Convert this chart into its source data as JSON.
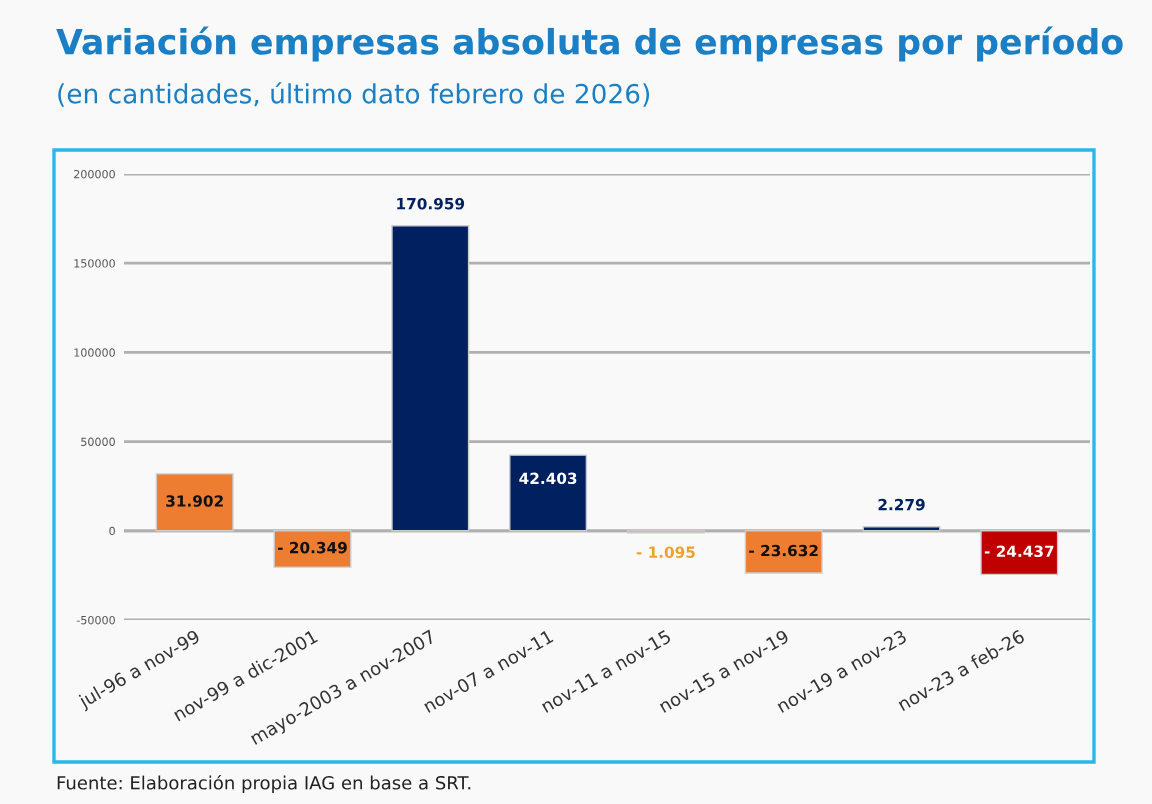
{
  "chart_data": {
    "type": "bar",
    "title": "Variación empresas absoluta de empresas por período",
    "subtitle": "(en cantidades, último dato febrero de 2026)",
    "categories": [
      "jul-96 a nov-99",
      "nov-99 a dic-2001",
      "mayo-2003 a nov-2007",
      "nov-07 a nov-11",
      "nov-11 a nov-15",
      "nov-15 a nov-19",
      "nov-19 a nov-23",
      "nov-23 a feb-26"
    ],
    "values": [
      31902,
      -20349,
      170959,
      42403,
      -1095,
      -23632,
      2279,
      -24437
    ],
    "colors": [
      "#ed7d31",
      "#ed7d31",
      "#002060",
      "#002060",
      "#f0a030",
      "#ed7d31",
      "#002060",
      "#c00000"
    ],
    "value_labels": [
      "31.902",
      "- 20.349",
      "170.959",
      "42.403",
      "- 1.095",
      "- 23.632",
      "2.279",
      "- 24.437"
    ],
    "ylim": [
      -50000,
      200000
    ],
    "yticks": [
      -50000,
      0,
      50000,
      100000,
      150000,
      200000
    ],
    "grid": "y",
    "annotations": [
      "Fuente: Elaboración propia IAG en base a SRT."
    ]
  }
}
